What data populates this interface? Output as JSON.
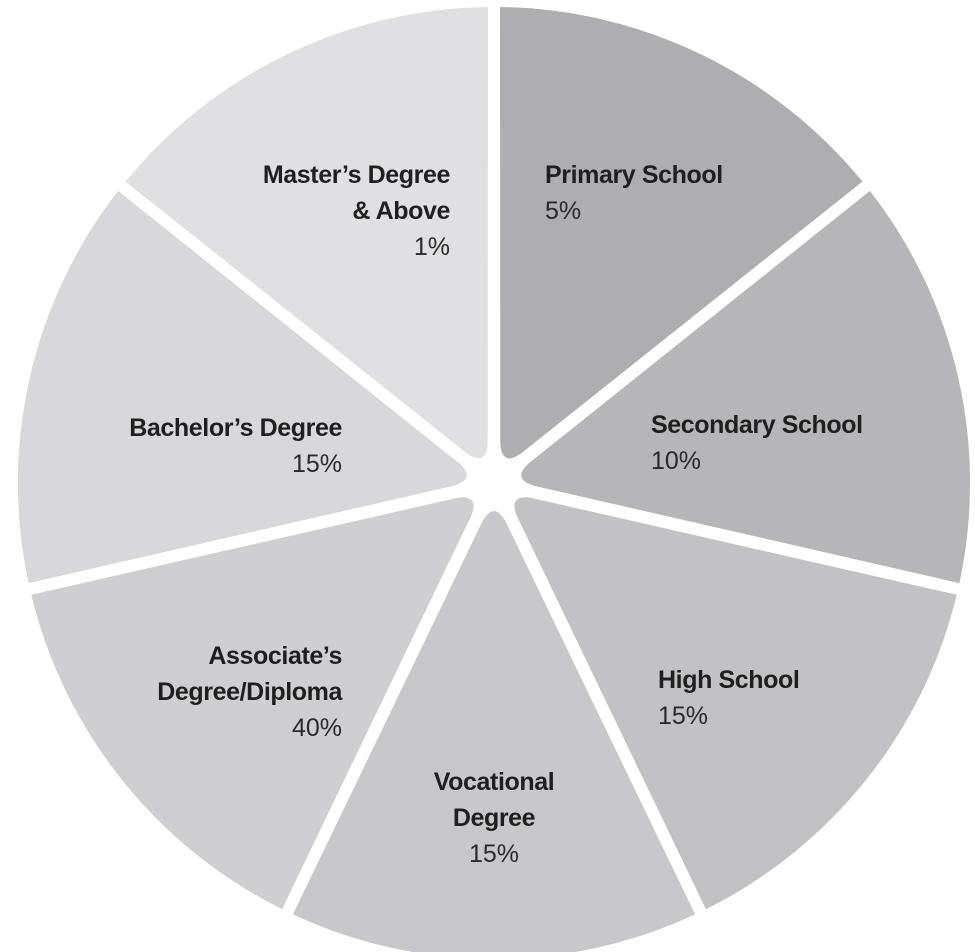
{
  "chart_data": {
    "type": "pie",
    "title": "",
    "slices": [
      {
        "lines": [
          "Primary School"
        ],
        "value_label": "5%",
        "value": 5,
        "color": "#aeaeb0"
      },
      {
        "lines": [
          "Secondary School"
        ],
        "value_label": "10%",
        "value": 10,
        "color": "#b6b6b8"
      },
      {
        "lines": [
          "High School"
        ],
        "value_label": "15%",
        "value": 15,
        "color": "#c2c2c4"
      },
      {
        "lines": [
          "Vocational",
          "Degree"
        ],
        "value_label": "15%",
        "value": 15,
        "color": "#c8c8ca"
      },
      {
        "lines": [
          "Associate’s",
          "Degree/Diploma"
        ],
        "value_label": "40%",
        "value": 40,
        "color": "#cfcfd1"
      },
      {
        "lines": [
          "Bachelor’s Degree"
        ],
        "value_label": "15%",
        "value": 15,
        "color": "#d8d8da"
      },
      {
        "lines": [
          "Master’s Degree",
          "& Above"
        ],
        "value_label": "1%",
        "value": 1,
        "color": "#e0e0e2"
      }
    ]
  }
}
